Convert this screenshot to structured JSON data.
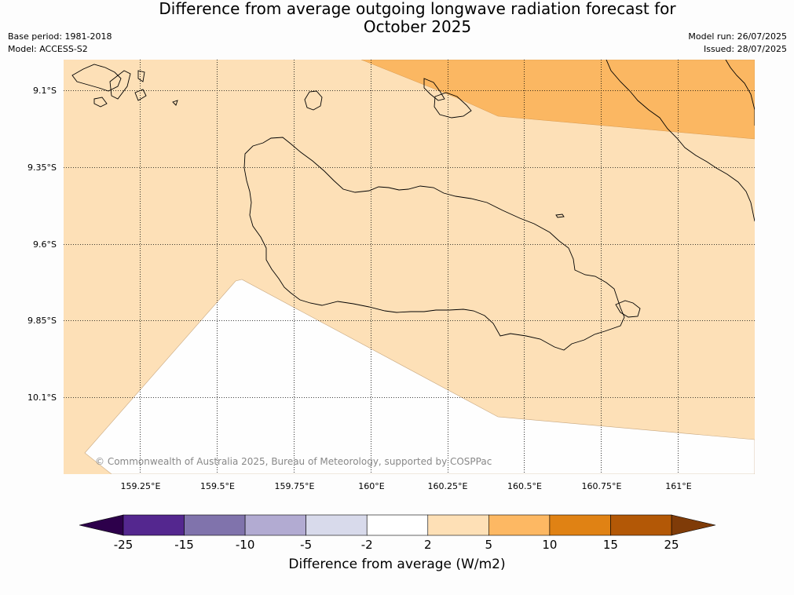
{
  "title": {
    "line1": "Difference from average outgoing longwave radiation forecast for",
    "line2": "October 2025"
  },
  "meta": {
    "base_period": "Base period: 1981-2018",
    "model": "Model: ACCESS-S2",
    "model_run": "Model run: 26/07/2025",
    "issued": "Issued: 28/07/2025"
  },
  "map": {
    "lat_labels": [
      "9.1°S",
      "9.35°S",
      "9.6°S",
      "9.85°S",
      "10.1°S"
    ],
    "lon_labels": [
      "159.25°E",
      "159.5°E",
      "159.75°E",
      "160°E",
      "160.25°E",
      "160.5°E",
      "160.75°E",
      "161°E"
    ],
    "copyright": "© Commonwealth of Australia 2025, Bureau of Meteorology, supported by COSPPac"
  },
  "colorbar": {
    "label": "Difference from average (W/m2)",
    "ticks": [
      "-25",
      "-15",
      "-10",
      "-5",
      "-2",
      "2",
      "5",
      "10",
      "15",
      "25"
    ],
    "bins": [
      {
        "range": "-25 to -15",
        "color": "#54278f"
      },
      {
        "range": "-15 to -10",
        "color": "#8073ac"
      },
      {
        "range": "-10 to -5",
        "color": "#b2abd2"
      },
      {
        "range": "-5 to -2",
        "color": "#d8daeb"
      },
      {
        "range": "-2 to 2",
        "color": "#ffffff"
      },
      {
        "range": "2 to 5",
        "color": "#fee0b6"
      },
      {
        "range": "5 to 10",
        "color": "#fdb863"
      },
      {
        "range": "10 to 15",
        "color": "#e08214"
      },
      {
        "range": "15 to 25",
        "color": "#b35806"
      }
    ],
    "under_color": "#2d004b",
    "over_color": "#7f3b08"
  }
}
